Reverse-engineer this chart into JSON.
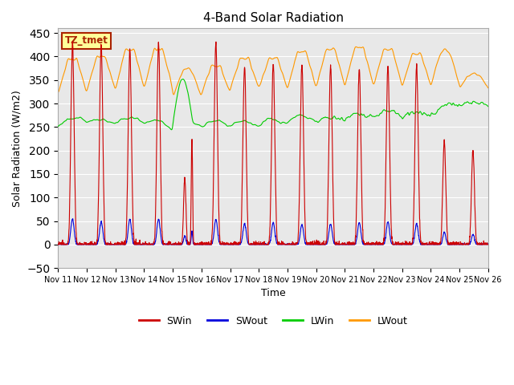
{
  "title": "4-Band Solar Radiation",
  "xlabel": "Time",
  "ylabel": "Solar Radiation (W/m2)",
  "ylim": [
    -50,
    460
  ],
  "yticks": [
    -50,
    0,
    50,
    100,
    150,
    200,
    250,
    300,
    350,
    400,
    450
  ],
  "colors": {
    "SWin": "#cc0000",
    "SWout": "#0000dd",
    "LWin": "#00cc00",
    "LWout": "#ff9900"
  },
  "bg_color": "#e8e8e8",
  "annotation_label": "TZ_tmet",
  "annotation_bg": "#ffff99",
  "annotation_border": "#aa2200",
  "xtick_labels": [
    "Nov 11",
    "Nov 12",
    "Nov 13",
    "Nov 14",
    "Nov 15",
    "Nov 16",
    "Nov 17",
    "Nov 18",
    "Nov 19",
    "Nov 20",
    "Nov 21",
    "Nov 22",
    "Nov 23",
    "Nov 24",
    "Nov 25",
    "Nov 26"
  ],
  "n_days": 15,
  "points_per_day": 144
}
